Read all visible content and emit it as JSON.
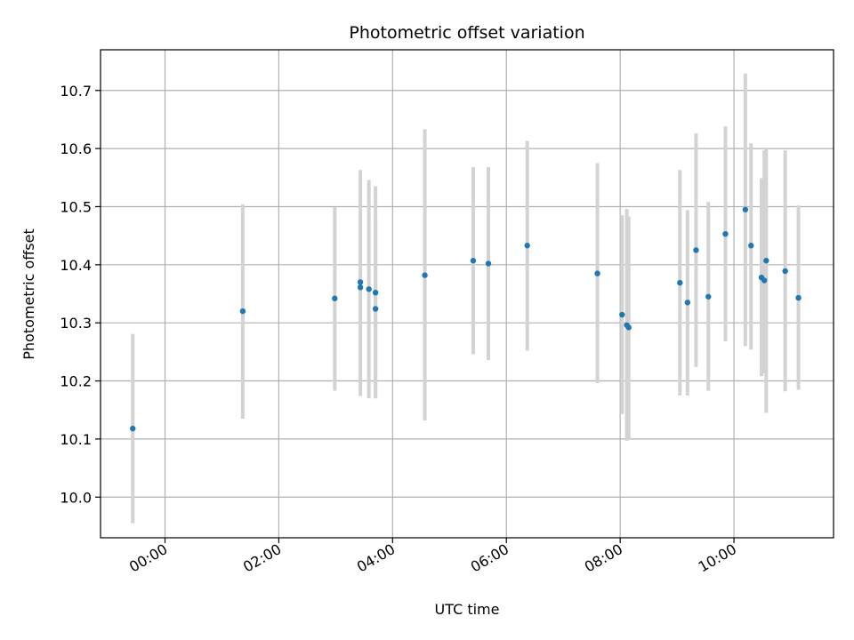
{
  "chart_data": {
    "type": "scatter",
    "title": "Photometric offset variation",
    "xlabel": "UTC time",
    "ylabel": "Photometric offset",
    "grid": true,
    "x_unit": "hours",
    "xlim": [
      "-01:08",
      "11:45"
    ],
    "ylim": [
      9.93,
      10.77
    ],
    "xticks": [
      {
        "value": "00:00",
        "label": "00:00"
      },
      {
        "value": "02:00",
        "label": "02:00"
      },
      {
        "value": "04:00",
        "label": "04:00"
      },
      {
        "value": "06:00",
        "label": "06:00"
      },
      {
        "value": "08:00",
        "label": "08:00"
      },
      {
        "value": "10:00",
        "label": "10:00"
      }
    ],
    "yticks": [
      10.0,
      10.1,
      10.2,
      10.3,
      10.4,
      10.5,
      10.6,
      10.7
    ],
    "point_color": "#1f77b4",
    "errorbar_color": "#d3d3d3",
    "series": [
      {
        "points": [
          {
            "x": "-00:34",
            "y": 10.118,
            "low": 9.955,
            "high": 10.281
          },
          {
            "x": "01:22",
            "y": 10.32,
            "low": 10.135,
            "high": 10.504
          },
          {
            "x": "02:59",
            "y": 10.342,
            "low": 10.183,
            "high": 10.499
          },
          {
            "x": "03:26",
            "y": 10.37,
            "low": 10.174,
            "high": 10.563
          },
          {
            "x": "03:26",
            "y": 10.361,
            "low": 10.174,
            "high": 10.548
          },
          {
            "x": "03:35",
            "y": 10.358,
            "low": 10.17,
            "high": 10.546
          },
          {
            "x": "03:42",
            "y": 10.352,
            "low": 10.17,
            "high": 10.535
          },
          {
            "x": "03:42",
            "y": 10.324,
            "low": 10.17,
            "high": 10.48
          },
          {
            "x": "04:34",
            "y": 10.382,
            "low": 10.132,
            "high": 10.633
          },
          {
            "x": "05:25",
            "y": 10.407,
            "low": 10.246,
            "high": 10.568
          },
          {
            "x": "05:41",
            "y": 10.402,
            "low": 10.236,
            "high": 10.568
          },
          {
            "x": "06:22",
            "y": 10.433,
            "low": 10.252,
            "high": 10.613
          },
          {
            "x": "07:36",
            "y": 10.385,
            "low": 10.196,
            "high": 10.575
          },
          {
            "x": "08:02",
            "y": 10.314,
            "low": 10.143,
            "high": 10.485
          },
          {
            "x": "08:07",
            "y": 10.296,
            "low": 10.097,
            "high": 10.496
          },
          {
            "x": "08:09",
            "y": 10.292,
            "low": 10.1,
            "high": 10.483
          },
          {
            "x": "09:03",
            "y": 10.369,
            "low": 10.175,
            "high": 10.563
          },
          {
            "x": "09:11",
            "y": 10.335,
            "low": 10.175,
            "high": 10.494
          },
          {
            "x": "09:20",
            "y": 10.425,
            "low": 10.224,
            "high": 10.626
          },
          {
            "x": "09:33",
            "y": 10.345,
            "low": 10.183,
            "high": 10.508
          },
          {
            "x": "09:51",
            "y": 10.453,
            "low": 10.268,
            "high": 10.638
          },
          {
            "x": "10:12",
            "y": 10.495,
            "low": 10.26,
            "high": 10.729
          },
          {
            "x": "10:18",
            "y": 10.433,
            "low": 10.254,
            "high": 10.609
          },
          {
            "x": "10:29",
            "y": 10.378,
            "low": 10.208,
            "high": 10.549
          },
          {
            "x": "10:32",
            "y": 10.373,
            "low": 10.213,
            "high": 10.597
          },
          {
            "x": "10:34",
            "y": 10.407,
            "low": 10.145,
            "high": 10.6
          },
          {
            "x": "10:54",
            "y": 10.389,
            "low": 10.182,
            "high": 10.597
          },
          {
            "x": "11:08",
            "y": 10.343,
            "low": 10.185,
            "high": 10.502
          }
        ]
      }
    ]
  }
}
